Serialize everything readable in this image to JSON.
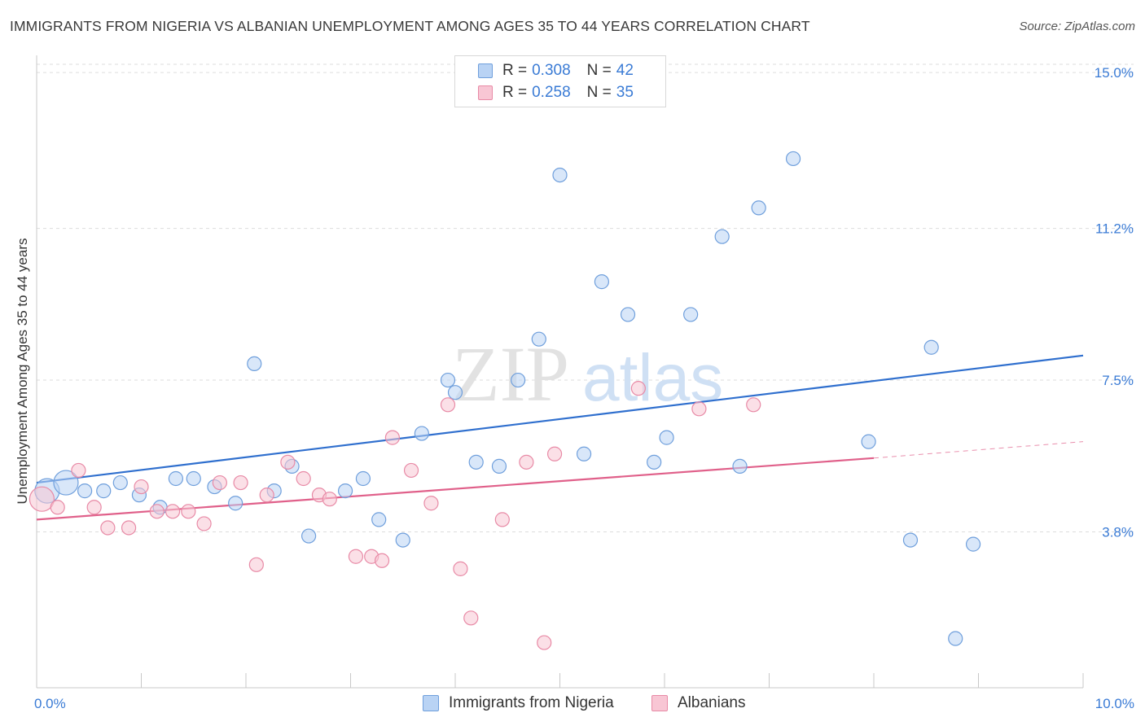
{
  "title": "IMMIGRANTS FROM NIGERIA VS ALBANIAN UNEMPLOYMENT AMONG AGES 35 TO 44 YEARS CORRELATION CHART",
  "source": "Source: ZipAtlas.com",
  "watermark": {
    "zip": "ZIP",
    "atlas": "atlas"
  },
  "legend": {
    "rows": [
      {
        "r_label": "R =",
        "r_value": "0.308",
        "n_label": "N =",
        "n_value": "42"
      },
      {
        "r_label": "R =",
        "r_value": "0.258",
        "n_label": "N =",
        "n_value": "35"
      }
    ]
  },
  "bottom_legend": {
    "series1": "Immigrants from Nigeria",
    "series2": "Albanians"
  },
  "colors": {
    "blue_fill": "#b9d3f4",
    "blue_stroke": "#6f9fdc",
    "blue_line": "#2f6fce",
    "pink_fill": "#f8c6d4",
    "pink_stroke": "#e88aa6",
    "pink_line": "#e0608a",
    "tick_label": "#3a7bd5",
    "grid": "#dddddd"
  },
  "chart_data": {
    "type": "scatter",
    "title": "IMMIGRANTS FROM NIGERIA VS ALBANIAN UNEMPLOYMENT AMONG AGES 35 TO 44 YEARS CORRELATION CHART",
    "xlabel": "",
    "ylabel": "Unemployment Among Ages 35 to 44 years",
    "xlim": [
      0,
      10
    ],
    "ylim": [
      0,
      15.3
    ],
    "x_tick_labels": [
      {
        "value": 0,
        "label": "0.0%"
      },
      {
        "value": 10,
        "label": "10.0%"
      }
    ],
    "y_tick_labels": [
      {
        "value": 3.8,
        "label": "3.8%"
      },
      {
        "value": 7.5,
        "label": "7.5%"
      },
      {
        "value": 11.2,
        "label": "11.2%"
      },
      {
        "value": 15.0,
        "label": "15.0%"
      }
    ],
    "series": [
      {
        "name": "Immigrants from Nigeria",
        "color": "blue",
        "trend": {
          "x": [
            0.0,
            10.0
          ],
          "y": [
            5.0,
            8.1
          ]
        },
        "points": [
          {
            "x": 0.1,
            "y": 4.8,
            "big": true
          },
          {
            "x": 0.28,
            "y": 5.0,
            "big": true
          },
          {
            "x": 0.46,
            "y": 4.8
          },
          {
            "x": 0.64,
            "y": 4.8
          },
          {
            "x": 0.8,
            "y": 5.0
          },
          {
            "x": 0.98,
            "y": 4.7
          },
          {
            "x": 1.18,
            "y": 4.4
          },
          {
            "x": 1.33,
            "y": 5.1
          },
          {
            "x": 1.5,
            "y": 5.1
          },
          {
            "x": 1.7,
            "y": 4.9
          },
          {
            "x": 1.9,
            "y": 4.5
          },
          {
            "x": 2.08,
            "y": 7.9
          },
          {
            "x": 2.27,
            "y": 4.8
          },
          {
            "x": 2.44,
            "y": 5.4
          },
          {
            "x": 2.6,
            "y": 3.7
          },
          {
            "x": 2.95,
            "y": 4.8
          },
          {
            "x": 3.12,
            "y": 5.1
          },
          {
            "x": 3.27,
            "y": 4.1
          },
          {
            "x": 3.5,
            "y": 3.6
          },
          {
            "x": 3.68,
            "y": 6.2
          },
          {
            "x": 3.93,
            "y": 7.5
          },
          {
            "x": 4.0,
            "y": 7.2
          },
          {
            "x": 4.2,
            "y": 5.5
          },
          {
            "x": 4.42,
            "y": 5.4
          },
          {
            "x": 4.6,
            "y": 7.5
          },
          {
            "x": 4.8,
            "y": 8.5
          },
          {
            "x": 5.0,
            "y": 12.5
          },
          {
            "x": 5.23,
            "y": 5.7
          },
          {
            "x": 5.4,
            "y": 9.9
          },
          {
            "x": 5.65,
            "y": 9.1
          },
          {
            "x": 5.9,
            "y": 5.5
          },
          {
            "x": 6.02,
            "y": 6.1
          },
          {
            "x": 6.25,
            "y": 9.1
          },
          {
            "x": 6.55,
            "y": 11.0
          },
          {
            "x": 6.72,
            "y": 5.4
          },
          {
            "x": 6.9,
            "y": 11.7
          },
          {
            "x": 7.23,
            "y": 12.9
          },
          {
            "x": 7.95,
            "y": 6.0
          },
          {
            "x": 8.35,
            "y": 3.6
          },
          {
            "x": 8.55,
            "y": 8.3
          },
          {
            "x": 8.78,
            "y": 1.2
          },
          {
            "x": 8.95,
            "y": 3.5
          }
        ]
      },
      {
        "name": "Albanians",
        "color": "pink",
        "trend": {
          "x": [
            0.0,
            8.0
          ],
          "y": [
            4.1,
            5.6
          ],
          "dash_to": {
            "x": 10.0,
            "y": 6.0
          }
        },
        "points": [
          {
            "x": 0.05,
            "y": 4.6,
            "big": true
          },
          {
            "x": 0.2,
            "y": 4.4
          },
          {
            "x": 0.4,
            "y": 5.3
          },
          {
            "x": 0.55,
            "y": 4.4
          },
          {
            "x": 0.68,
            "y": 3.9
          },
          {
            "x": 0.88,
            "y": 3.9
          },
          {
            "x": 1.0,
            "y": 4.9
          },
          {
            "x": 1.15,
            "y": 4.3
          },
          {
            "x": 1.3,
            "y": 4.3
          },
          {
            "x": 1.45,
            "y": 4.3
          },
          {
            "x": 1.6,
            "y": 4.0
          },
          {
            "x": 1.75,
            "y": 5.0
          },
          {
            "x": 1.95,
            "y": 5.0
          },
          {
            "x": 2.1,
            "y": 3.0
          },
          {
            "x": 2.2,
            "y": 4.7
          },
          {
            "x": 2.4,
            "y": 5.5
          },
          {
            "x": 2.55,
            "y": 5.1
          },
          {
            "x": 2.7,
            "y": 4.7
          },
          {
            "x": 2.8,
            "y": 4.6
          },
          {
            "x": 3.05,
            "y": 3.2
          },
          {
            "x": 3.2,
            "y": 3.2
          },
          {
            "x": 3.3,
            "y": 3.1
          },
          {
            "x": 3.4,
            "y": 6.1
          },
          {
            "x": 3.58,
            "y": 5.3
          },
          {
            "x": 3.77,
            "y": 4.5
          },
          {
            "x": 3.93,
            "y": 6.9
          },
          {
            "x": 4.05,
            "y": 2.9
          },
          {
            "x": 4.15,
            "y": 1.7
          },
          {
            "x": 4.45,
            "y": 4.1
          },
          {
            "x": 4.68,
            "y": 5.5
          },
          {
            "x": 4.85,
            "y": 1.1
          },
          {
            "x": 4.95,
            "y": 5.7
          },
          {
            "x": 5.75,
            "y": 7.3
          },
          {
            "x": 6.33,
            "y": 6.8
          },
          {
            "x": 6.85,
            "y": 6.9
          }
        ]
      }
    ]
  }
}
